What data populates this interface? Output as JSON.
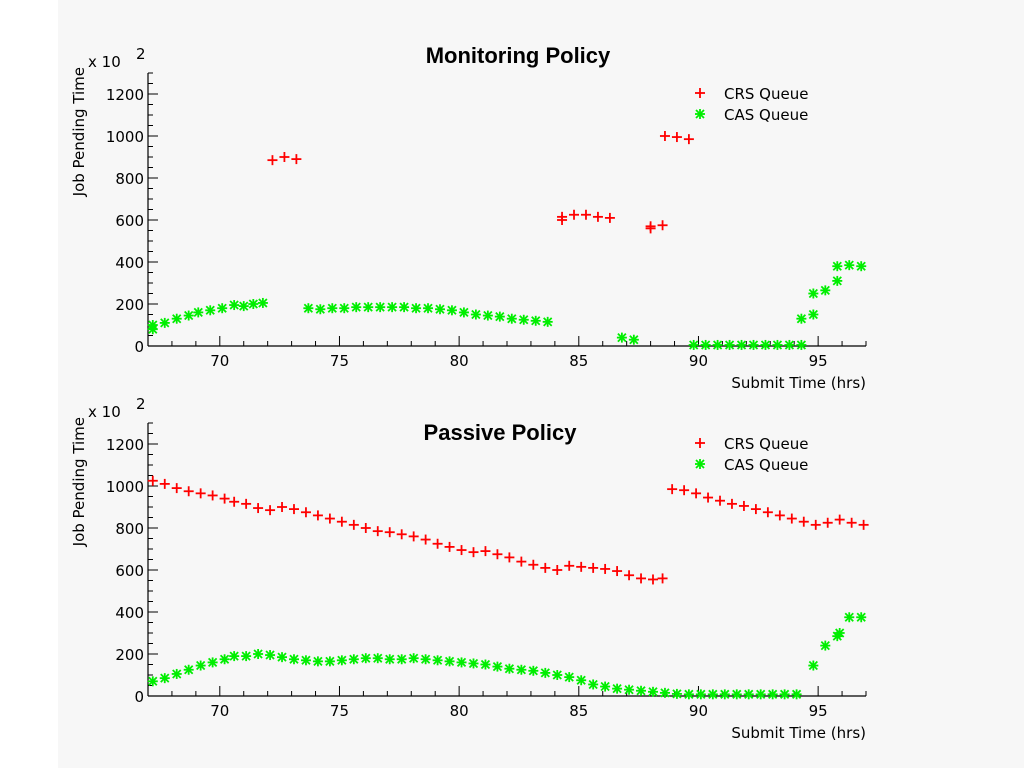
{
  "colors": {
    "background": "#f7f7f7",
    "crs": "#ff0000",
    "cas": "#00ee00",
    "axis": "#000000"
  },
  "chart_data": [
    {
      "type": "scatter",
      "title": "Monitoring Policy",
      "xlabel": "Submit Time (hrs)",
      "ylabel": "Job Pending Time",
      "y_multiplier_label": "x 10",
      "y_multiplier_exponent": "2",
      "xlim": [
        67,
        97
      ],
      "ylim": [
        0,
        1300
      ],
      "x_ticks": [
        70,
        75,
        80,
        85,
        90,
        95
      ],
      "y_ticks": [
        0,
        200,
        400,
        600,
        800,
        1000,
        1200
      ],
      "grid": false,
      "legend_position": "top-right",
      "series": [
        {
          "name": "CRS Queue",
          "marker": "plus",
          "color": "#ff0000",
          "points": [
            [
              72.2,
              885
            ],
            [
              72.7,
              900
            ],
            [
              73.2,
              890
            ],
            [
              84.3,
              600
            ],
            [
              84.3,
              615
            ],
            [
              84.8,
              625
            ],
            [
              85.3,
              625
            ],
            [
              85.8,
              615
            ],
            [
              86.3,
              610
            ],
            [
              88.0,
              560
            ],
            [
              88.0,
              570
            ],
            [
              88.5,
              575
            ],
            [
              88.6,
              1000
            ],
            [
              89.1,
              995
            ],
            [
              89.6,
              985
            ]
          ]
        },
        {
          "name": "CAS Queue",
          "marker": "asterisk",
          "color": "#00ee00",
          "points": [
            [
              67.2,
              80
            ],
            [
              67.2,
              100
            ],
            [
              67.7,
              110
            ],
            [
              68.2,
              130
            ],
            [
              68.7,
              145
            ],
            [
              69.1,
              160
            ],
            [
              69.6,
              170
            ],
            [
              70.1,
              180
            ],
            [
              70.6,
              195
            ],
            [
              71.0,
              190
            ],
            [
              71.4,
              200
            ],
            [
              71.8,
              205
            ],
            [
              73.7,
              180
            ],
            [
              74.2,
              175
            ],
            [
              74.7,
              180
            ],
            [
              75.2,
              180
            ],
            [
              75.7,
              185
            ],
            [
              76.2,
              185
            ],
            [
              76.7,
              185
            ],
            [
              77.2,
              185
            ],
            [
              77.7,
              185
            ],
            [
              78.2,
              180
            ],
            [
              78.7,
              180
            ],
            [
              79.2,
              175
            ],
            [
              79.7,
              170
            ],
            [
              80.2,
              160
            ],
            [
              80.7,
              150
            ],
            [
              81.2,
              145
            ],
            [
              81.7,
              140
            ],
            [
              82.2,
              130
            ],
            [
              82.7,
              125
            ],
            [
              83.2,
              120
            ],
            [
              83.7,
              115
            ],
            [
              86.8,
              40
            ],
            [
              87.3,
              30
            ],
            [
              89.8,
              5
            ],
            [
              90.3,
              5
            ],
            [
              90.8,
              5
            ],
            [
              91.3,
              5
            ],
            [
              91.8,
              5
            ],
            [
              92.3,
              5
            ],
            [
              92.8,
              5
            ],
            [
              93.3,
              5
            ],
            [
              93.8,
              5
            ],
            [
              94.3,
              5
            ],
            [
              94.3,
              130
            ],
            [
              94.8,
              150
            ],
            [
              94.8,
              250
            ],
            [
              95.3,
              265
            ],
            [
              95.8,
              310
            ],
            [
              95.8,
              380
            ],
            [
              96.3,
              385
            ],
            [
              96.8,
              380
            ]
          ]
        }
      ]
    },
    {
      "type": "scatter",
      "title": "Passive Policy",
      "xlabel": "Submit Time (hrs)",
      "ylabel": "Job Pending Time",
      "y_multiplier_label": "x 10",
      "y_multiplier_exponent": "2",
      "xlim": [
        67,
        97
      ],
      "ylim": [
        0,
        1300
      ],
      "x_ticks": [
        70,
        75,
        80,
        85,
        90,
        95
      ],
      "y_ticks": [
        0,
        200,
        400,
        600,
        800,
        1000,
        1200
      ],
      "grid": false,
      "legend_position": "top-right",
      "series": [
        {
          "name": "CRS Queue",
          "marker": "plus",
          "color": "#ff0000",
          "points": [
            [
              67.2,
              1025
            ],
            [
              67.7,
              1010
            ],
            [
              68.2,
              990
            ],
            [
              68.7,
              975
            ],
            [
              69.2,
              965
            ],
            [
              69.7,
              955
            ],
            [
              70.2,
              940
            ],
            [
              70.6,
              925
            ],
            [
              71.1,
              915
            ],
            [
              71.6,
              895
            ],
            [
              72.1,
              885
            ],
            [
              72.6,
              900
            ],
            [
              73.1,
              890
            ],
            [
              73.6,
              875
            ],
            [
              74.1,
              860
            ],
            [
              74.6,
              845
            ],
            [
              75.1,
              830
            ],
            [
              75.6,
              815
            ],
            [
              76.1,
              800
            ],
            [
              76.6,
              785
            ],
            [
              77.1,
              780
            ],
            [
              77.6,
              770
            ],
            [
              78.1,
              760
            ],
            [
              78.6,
              745
            ],
            [
              79.1,
              725
            ],
            [
              79.6,
              710
            ],
            [
              80.1,
              695
            ],
            [
              80.6,
              685
            ],
            [
              81.1,
              690
            ],
            [
              81.6,
              675
            ],
            [
              82.1,
              660
            ],
            [
              82.6,
              640
            ],
            [
              83.1,
              625
            ],
            [
              83.6,
              610
            ],
            [
              84.1,
              600
            ],
            [
              84.6,
              620
            ],
            [
              85.1,
              615
            ],
            [
              85.6,
              610
            ],
            [
              86.1,
              605
            ],
            [
              86.6,
              595
            ],
            [
              87.1,
              575
            ],
            [
              87.6,
              560
            ],
            [
              88.1,
              555
            ],
            [
              88.5,
              560
            ],
            [
              88.9,
              985
            ],
            [
              89.4,
              980
            ],
            [
              89.9,
              965
            ],
            [
              90.4,
              945
            ],
            [
              90.9,
              930
            ],
            [
              91.4,
              915
            ],
            [
              91.9,
              905
            ],
            [
              92.4,
              890
            ],
            [
              92.9,
              875
            ],
            [
              93.4,
              860
            ],
            [
              93.9,
              845
            ],
            [
              94.4,
              830
            ],
            [
              94.9,
              815
            ],
            [
              95.4,
              825
            ],
            [
              95.9,
              840
            ],
            [
              96.4,
              825
            ],
            [
              96.9,
              815
            ]
          ]
        },
        {
          "name": "CAS Queue",
          "marker": "asterisk",
          "color": "#00ee00",
          "points": [
            [
              67.2,
              70
            ],
            [
              67.7,
              85
            ],
            [
              68.2,
              105
            ],
            [
              68.7,
              125
            ],
            [
              69.2,
              145
            ],
            [
              69.7,
              160
            ],
            [
              70.2,
              175
            ],
            [
              70.6,
              190
            ],
            [
              71.1,
              190
            ],
            [
              71.6,
              200
            ],
            [
              72.1,
              195
            ],
            [
              72.6,
              185
            ],
            [
              73.1,
              175
            ],
            [
              73.6,
              170
            ],
            [
              74.1,
              165
            ],
            [
              74.6,
              165
            ],
            [
              75.1,
              170
            ],
            [
              75.6,
              175
            ],
            [
              76.1,
              180
            ],
            [
              76.6,
              180
            ],
            [
              77.1,
              175
            ],
            [
              77.6,
              175
            ],
            [
              78.1,
              180
            ],
            [
              78.6,
              175
            ],
            [
              79.1,
              170
            ],
            [
              79.6,
              165
            ],
            [
              80.1,
              160
            ],
            [
              80.6,
              155
            ],
            [
              81.1,
              150
            ],
            [
              81.6,
              140
            ],
            [
              82.1,
              130
            ],
            [
              82.6,
              125
            ],
            [
              83.1,
              120
            ],
            [
              83.6,
              110
            ],
            [
              84.1,
              100
            ],
            [
              84.6,
              90
            ],
            [
              85.1,
              75
            ],
            [
              85.6,
              55
            ],
            [
              86.1,
              45
            ],
            [
              86.6,
              35
            ],
            [
              87.1,
              30
            ],
            [
              87.6,
              25
            ],
            [
              88.1,
              20
            ],
            [
              88.6,
              15
            ],
            [
              89.1,
              10
            ],
            [
              89.6,
              8
            ],
            [
              90.1,
              8
            ],
            [
              90.6,
              8
            ],
            [
              91.1,
              8
            ],
            [
              91.6,
              8
            ],
            [
              92.1,
              8
            ],
            [
              92.6,
              8
            ],
            [
              93.1,
              8
            ],
            [
              93.6,
              8
            ],
            [
              94.1,
              8
            ],
            [
              94.8,
              145
            ],
            [
              95.3,
              240
            ],
            [
              95.8,
              285
            ],
            [
              95.9,
              300
            ],
            [
              96.3,
              375
            ],
            [
              96.8,
              375
            ]
          ]
        }
      ]
    }
  ]
}
